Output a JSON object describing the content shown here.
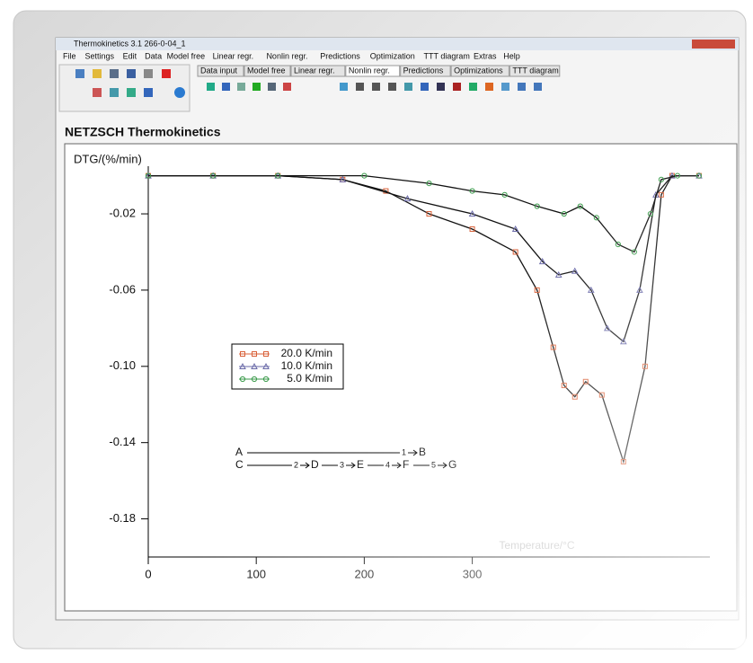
{
  "window": {
    "title": "Thermokinetics 3.1   266-0-04_1",
    "menu": [
      "File",
      "Settings",
      "Edit",
      "Data",
      "Model free",
      "Linear regr.",
      "Nonlin regr.",
      "Predictions",
      "Optimization",
      "TTT diagram",
      "Extras",
      "Help"
    ],
    "tabs": [
      "Data input",
      "Model free",
      "Linear regr.",
      "Nonlin regr.",
      "Predictions",
      "Optimizations",
      "TTT diagram"
    ],
    "panel_title": "NETZSCH Thermokinetics"
  },
  "chart_data": {
    "type": "line",
    "ylabel": "DTG/(%/min)",
    "xlabel": "Temperature/°C",
    "xlim": [
      0,
      520
    ],
    "ylim": [
      -0.2,
      0.005
    ],
    "xticks": [
      0,
      100,
      200,
      300
    ],
    "yticks": [
      -0.02,
      -0.06,
      {
        "value": -0.1,
        "label": "-0.10"
      },
      -0.14,
      -0.18
    ],
    "fit_color": "#111111",
    "series": [
      {
        "name": "20.0 K/min",
        "color": "#d9623a",
        "marker": "square",
        "x": [
          0,
          60,
          120,
          180,
          220,
          260,
          300,
          340,
          360,
          375,
          385,
          395,
          405,
          420,
          440,
          460,
          475,
          485,
          510
        ],
        "values": [
          0,
          0,
          0,
          -0.002,
          -0.008,
          -0.02,
          -0.028,
          -0.04,
          -0.06,
          -0.09,
          -0.11,
          -0.116,
          -0.108,
          -0.115,
          -0.15,
          -0.1,
          -0.01,
          0,
          0
        ]
      },
      {
        "name": "10.0 K/min",
        "color": "#6a6aa8",
        "marker": "triangle",
        "x": [
          0,
          60,
          120,
          180,
          240,
          300,
          340,
          365,
          380,
          395,
          410,
          425,
          440,
          455,
          470,
          485,
          510
        ],
        "values": [
          0,
          0,
          0,
          -0.002,
          -0.012,
          -0.02,
          -0.028,
          -0.045,
          -0.052,
          -0.05,
          -0.06,
          -0.08,
          -0.087,
          -0.06,
          -0.01,
          0,
          0
        ]
      },
      {
        "name": "5.0 K/min",
        "color": "#3a9a4a",
        "marker": "circle",
        "x": [
          0,
          60,
          120,
          200,
          260,
          300,
          330,
          360,
          385,
          400,
          415,
          435,
          450,
          465,
          475,
          490,
          510
        ],
        "values": [
          0,
          0,
          0,
          0,
          -0.004,
          -0.008,
          -0.01,
          -0.016,
          -0.02,
          -0.016,
          -0.022,
          -0.036,
          -0.04,
          -0.02,
          -0.002,
          0,
          0
        ]
      }
    ]
  },
  "scheme": [
    {
      "from": "A",
      "steps": [
        {
          "step": "1",
          "to": "B"
        }
      ]
    },
    {
      "from": "C",
      "steps": [
        {
          "step": "2",
          "to": "D"
        },
        {
          "step": "3",
          "to": "E"
        },
        {
          "step": "4",
          "to": "F"
        },
        {
          "step": "5",
          "to": "G"
        }
      ]
    }
  ]
}
